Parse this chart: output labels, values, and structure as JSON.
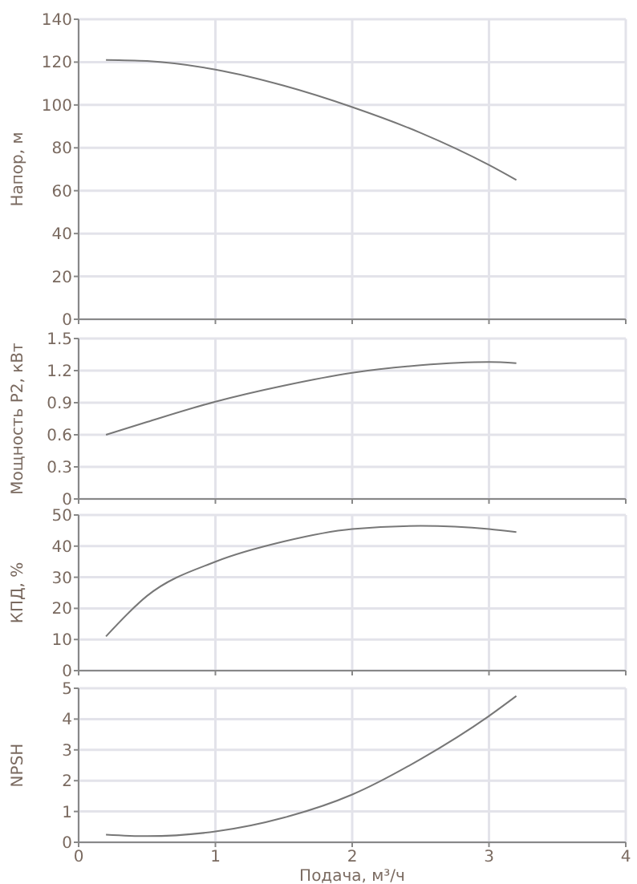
{
  "chart_data": [
    {
      "type": "line",
      "ylabel": "Напор, м",
      "x": [
        0.2,
        0.5,
        1,
        1.5,
        2,
        2.5,
        3,
        3.2
      ],
      "series": [
        {
          "color": "#777777",
          "values": [
            121,
            120.5,
            116.5,
            109,
            99,
            87,
            72,
            65
          ]
        }
      ],
      "xlim": [
        0,
        4
      ],
      "xticks": [
        0,
        1,
        2,
        3,
        4
      ],
      "ylim": [
        0,
        140
      ],
      "yticks": [
        0,
        20,
        40,
        60,
        80,
        100,
        120,
        140
      ],
      "grid": true,
      "tick_labels": "y"
    },
    {
      "type": "line",
      "ylabel": "Мощность P2, кВт",
      "x": [
        0.2,
        0.5,
        1,
        1.5,
        2,
        2.5,
        3,
        3.2
      ],
      "series": [
        {
          "color": "#777777",
          "values": [
            0.6,
            0.72,
            0.91,
            1.06,
            1.18,
            1.25,
            1.28,
            1.27
          ]
        }
      ],
      "xlim": [
        0,
        4
      ],
      "xticks": [
        0,
        1,
        2,
        3,
        4
      ],
      "ylim": [
        0,
        1.5
      ],
      "yticks": [
        {
          "value": 0,
          "label": "0"
        },
        {
          "value": 0.3,
          "label": "0.3"
        },
        {
          "value": 0.6,
          "label": "0.6"
        },
        {
          "value": 0.9,
          "label": "0.9"
        },
        {
          "value": 1.2,
          "label": "1.2"
        },
        {
          "value": 1.5,
          "label": "1.5"
        }
      ],
      "grid": true,
      "tick_labels": "y"
    },
    {
      "type": "line",
      "ylabel": "КПД, %",
      "x": [
        0.2,
        0.5,
        1,
        1.5,
        2,
        2.5,
        3,
        3.2
      ],
      "series": [
        {
          "color": "#777777",
          "values": [
            11,
            24,
            35,
            41.5,
            45.5,
            46.5,
            45.5,
            44.5
          ]
        }
      ],
      "xlim": [
        0,
        4
      ],
      "xticks": [
        0,
        1,
        2,
        3,
        4
      ],
      "ylim": [
        0,
        50
      ],
      "yticks": [
        0,
        10,
        20,
        30,
        40,
        50
      ],
      "grid": true,
      "tick_labels": "y"
    },
    {
      "type": "line",
      "xlabel": "Подача, м³/ч",
      "ylabel": "NPSH",
      "x": [
        0.2,
        0.5,
        1,
        1.5,
        2,
        2.5,
        3,
        3.2
      ],
      "series": [
        {
          "color": "#777777",
          "values": [
            0.25,
            0.2,
            0.35,
            0.8,
            1.55,
            2.7,
            4.1,
            4.75
          ]
        }
      ],
      "xlim": [
        0,
        4
      ],
      "xticks": [
        0,
        1,
        2,
        3,
        4
      ],
      "ylim": [
        0,
        5
      ],
      "yticks": [
        0,
        1,
        2,
        3,
        4,
        5
      ],
      "grid": true
    }
  ]
}
